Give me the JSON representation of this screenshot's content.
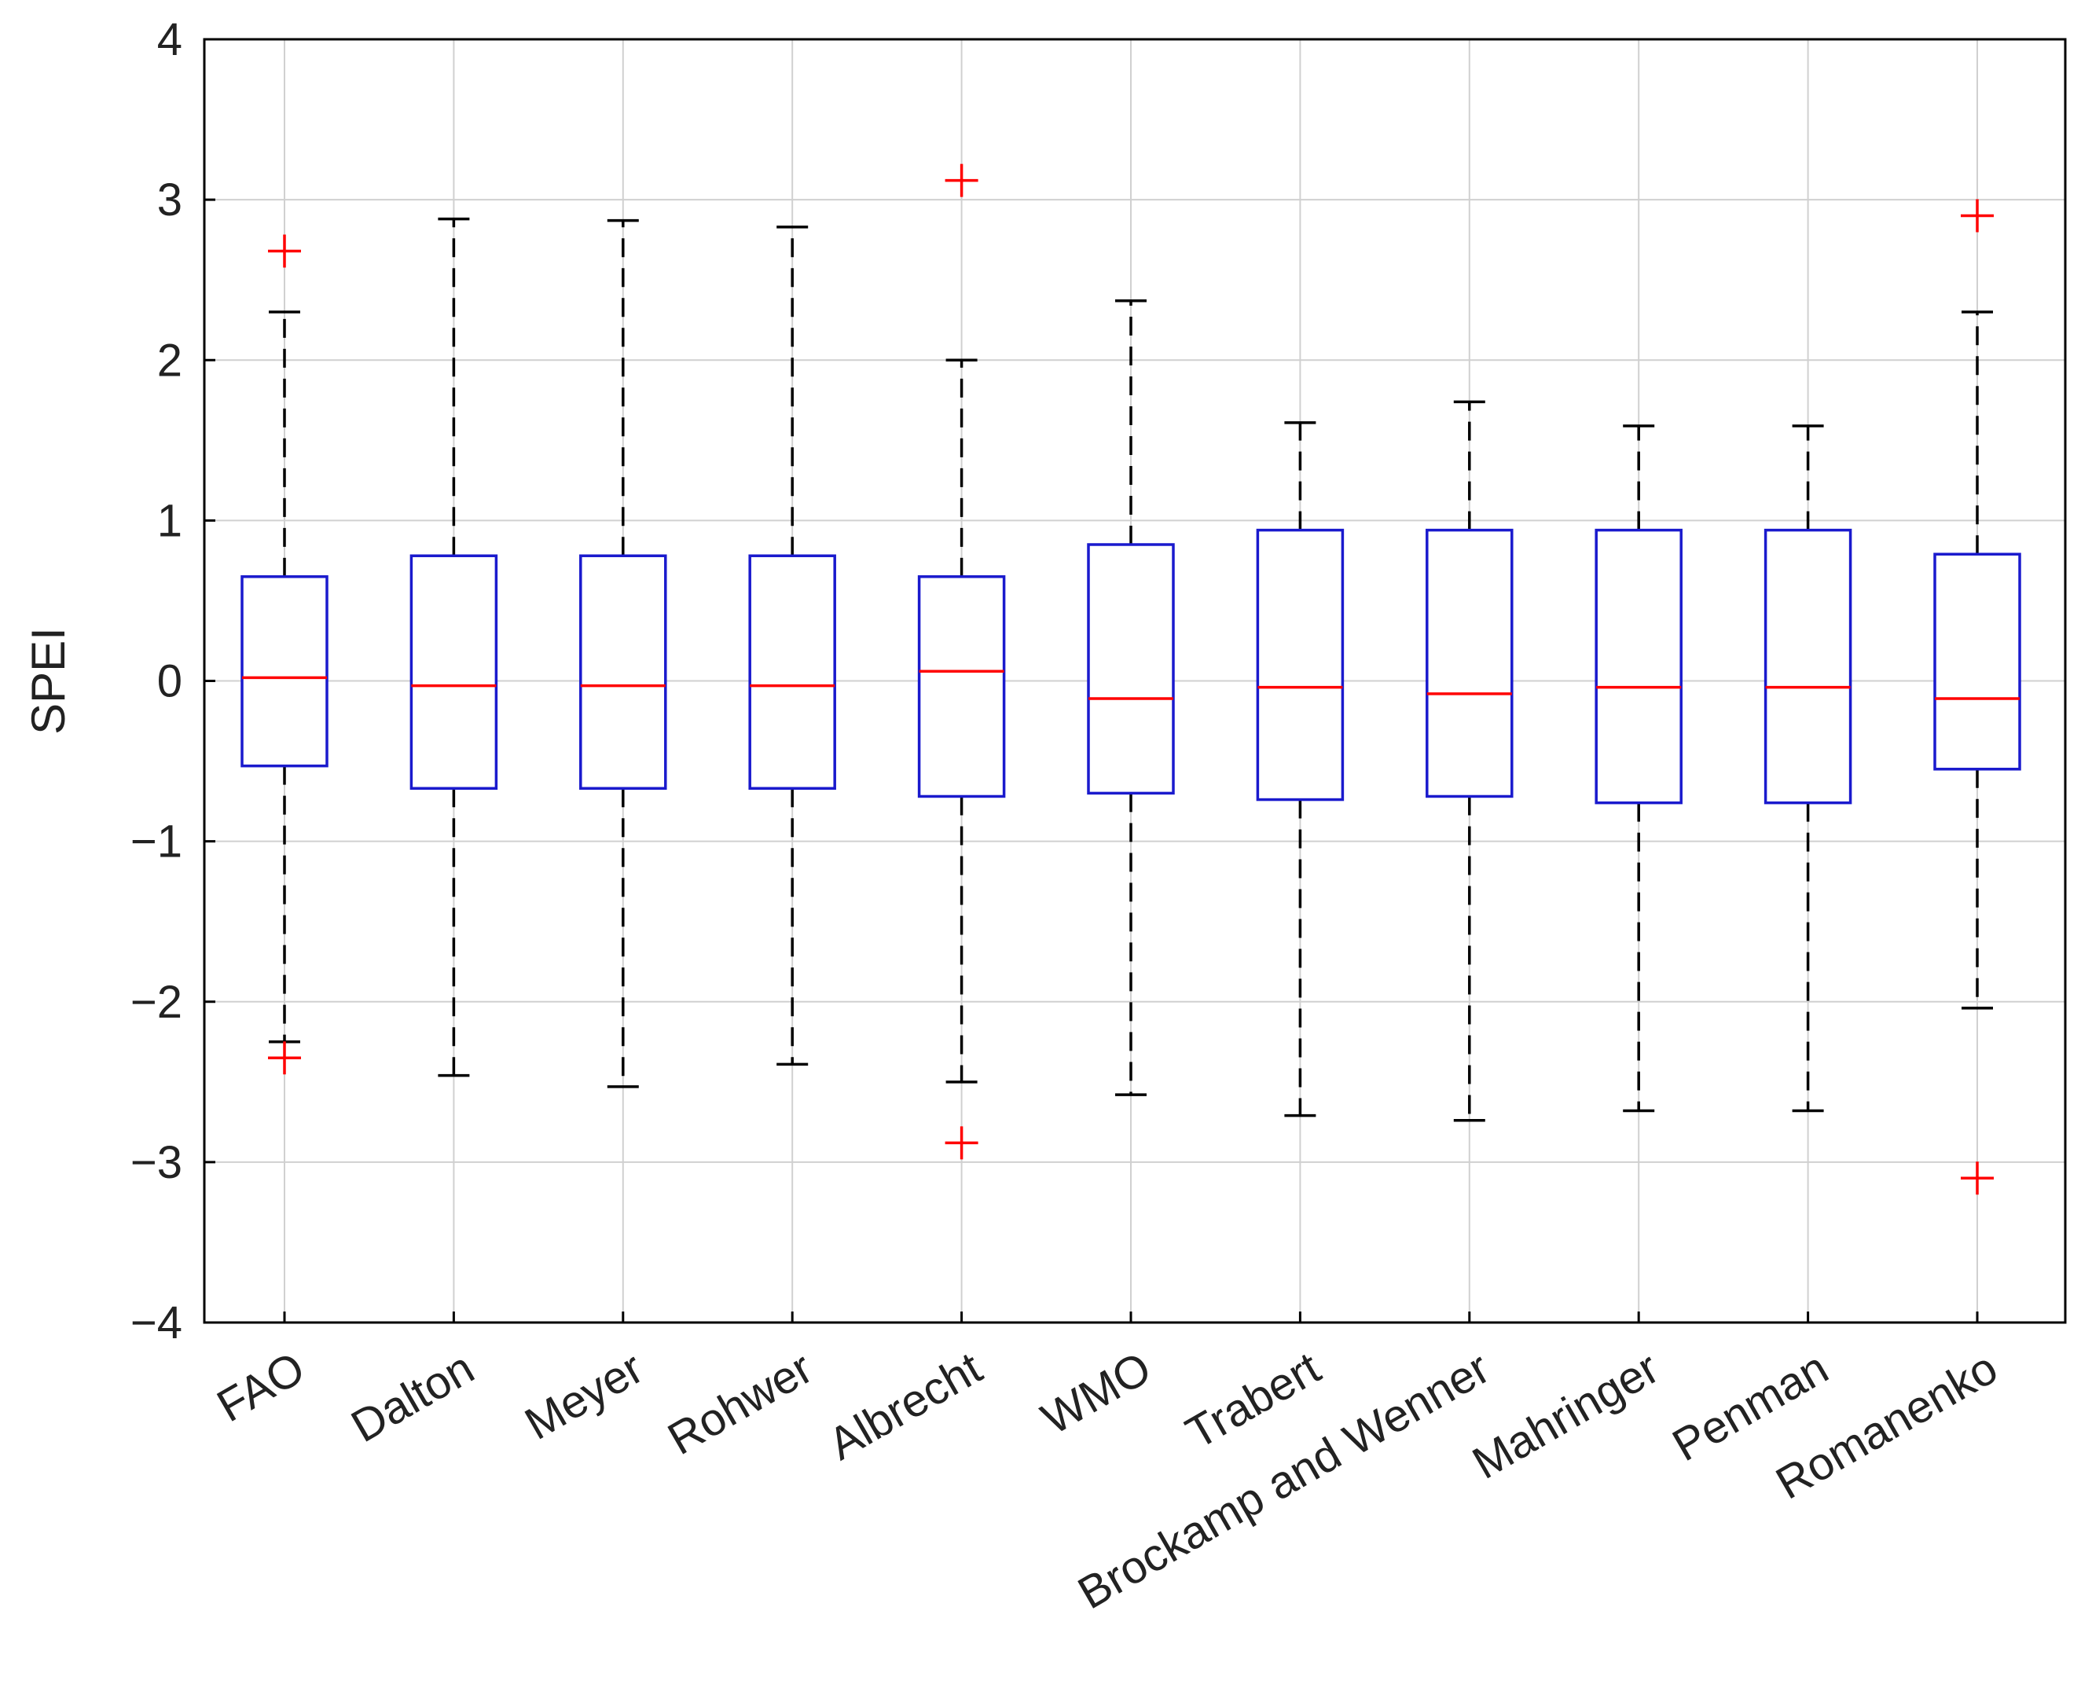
{
  "chart_data": {
    "type": "box",
    "title": "",
    "xlabel": "",
    "ylabel": "SPEI",
    "ylim": [
      -4,
      4
    ],
    "yticks": [
      4,
      3,
      2,
      1,
      0,
      -1,
      -2,
      -3,
      -4
    ],
    "ytick_labels": [
      "4",
      "3",
      "2",
      "1",
      "0",
      "−1",
      "−2",
      "−3",
      "−4"
    ],
    "grid": true,
    "categories": [
      "FAO",
      "Dalton",
      "Meyer",
      "Rohwer",
      "Albrecht",
      "WMO",
      "Trabert",
      "Brockamp and Wenner",
      "Mahringer",
      "Penman",
      "Romanenko"
    ],
    "boxes": [
      {
        "name": "FAO",
        "whisker_low": -2.25,
        "q1": -0.53,
        "median": 0.02,
        "q3": 0.65,
        "whisker_high": 2.3,
        "outliers": [
          2.68,
          -2.35
        ]
      },
      {
        "name": "Dalton",
        "whisker_low": -2.46,
        "q1": -0.67,
        "median": -0.03,
        "q3": 0.78,
        "whisker_high": 2.88,
        "outliers": []
      },
      {
        "name": "Meyer",
        "whisker_low": -2.53,
        "q1": -0.67,
        "median": -0.03,
        "q3": 0.78,
        "whisker_high": 2.87,
        "outliers": []
      },
      {
        "name": "Rohwer",
        "whisker_low": -2.39,
        "q1": -0.67,
        "median": -0.03,
        "q3": 0.78,
        "whisker_high": 2.83,
        "outliers": []
      },
      {
        "name": "Albrecht",
        "whisker_low": -2.5,
        "q1": -0.72,
        "median": 0.06,
        "q3": 0.65,
        "whisker_high": 2.0,
        "outliers": [
          3.12,
          -2.88
        ]
      },
      {
        "name": "WMO",
        "whisker_low": -2.58,
        "q1": -0.7,
        "median": -0.11,
        "q3": 0.85,
        "whisker_high": 2.37,
        "outliers": []
      },
      {
        "name": "Trabert",
        "whisker_low": -2.71,
        "q1": -0.74,
        "median": -0.04,
        "q3": 0.94,
        "whisker_high": 1.61,
        "outliers": []
      },
      {
        "name": "Brockamp and Wenner",
        "whisker_low": -2.74,
        "q1": -0.72,
        "median": -0.08,
        "q3": 0.94,
        "whisker_high": 1.74,
        "outliers": []
      },
      {
        "name": "Mahringer",
        "whisker_low": -2.68,
        "q1": -0.76,
        "median": -0.04,
        "q3": 0.94,
        "whisker_high": 1.59,
        "outliers": []
      },
      {
        "name": "Penman",
        "whisker_low": -2.68,
        "q1": -0.76,
        "median": -0.04,
        "q3": 0.94,
        "whisker_high": 1.59,
        "outliers": []
      },
      {
        "name": "Romanenko",
        "whisker_low": -2.04,
        "q1": -0.55,
        "median": -0.11,
        "q3": 0.79,
        "whisker_high": 2.3,
        "outliers": [
          2.9,
          -3.1
        ]
      }
    ],
    "colors": {
      "box": "#1a1acd",
      "median": "#ff0000",
      "whisker": "#000000",
      "outlier": "#ff0000",
      "grid": "#d0d0d0",
      "axis": "#000000"
    }
  }
}
